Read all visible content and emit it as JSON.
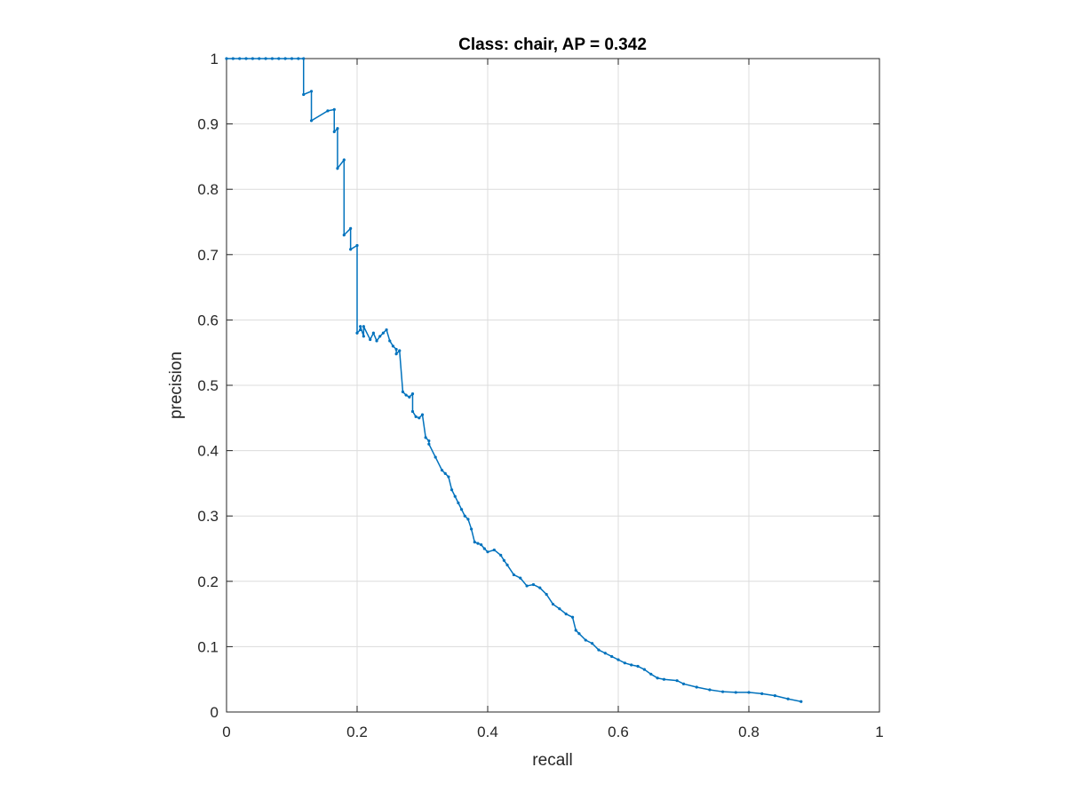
{
  "chart_data": {
    "type": "line",
    "title": "Class: chair, AP = 0.342",
    "xlabel": "recall",
    "ylabel": "precision",
    "xlim": [
      0,
      1
    ],
    "ylim": [
      0,
      1
    ],
    "xticks": [
      "0",
      "0.2",
      "0.4",
      "0.6",
      "0.8",
      "1"
    ],
    "yticks": [
      "0",
      "0.1",
      "0.2",
      "0.3",
      "0.4",
      "0.5",
      "0.6",
      "0.7",
      "0.8",
      "0.9",
      "1"
    ],
    "grid": true,
    "line_color": "#0072BD",
    "series": [
      {
        "x": [
          0,
          0.01,
          0.02,
          0.03,
          0.04,
          0.05,
          0.06,
          0.07,
          0.08,
          0.09,
          0.1,
          0.11,
          0.118,
          0.118,
          0.13,
          0.13,
          0.155,
          0.165,
          0.165,
          0.17,
          0.17,
          0.18,
          0.18,
          0.19,
          0.19,
          0.2,
          0.2,
          0.205,
          0.205,
          0.21,
          0.21,
          0.22,
          0.225,
          0.23,
          0.235,
          0.24,
          0.245,
          0.25,
          0.255,
          0.26,
          0.26,
          0.265,
          0.27,
          0.275,
          0.28,
          0.285,
          0.285,
          0.29,
          0.295,
          0.3,
          0.305,
          0.31,
          0.31,
          0.32,
          0.33,
          0.335,
          0.34,
          0.345,
          0.35,
          0.355,
          0.36,
          0.365,
          0.37,
          0.375,
          0.38,
          0.385,
          0.39,
          0.395,
          0.4,
          0.41,
          0.42,
          0.425,
          0.43,
          0.44,
          0.45,
          0.46,
          0.47,
          0.48,
          0.49,
          0.5,
          0.51,
          0.52,
          0.53,
          0.535,
          0.54,
          0.55,
          0.56,
          0.57,
          0.58,
          0.59,
          0.6,
          0.61,
          0.62,
          0.63,
          0.64,
          0.65,
          0.66,
          0.67,
          0.69,
          0.7,
          0.72,
          0.74,
          0.76,
          0.78,
          0.8,
          0.82,
          0.84,
          0.86,
          0.88
        ],
        "y": [
          1.0,
          1.0,
          1.0,
          1.0,
          1.0,
          1.0,
          1.0,
          1.0,
          1.0,
          1.0,
          1.0,
          1.0,
          1.0,
          0.945,
          0.95,
          0.905,
          0.92,
          0.922,
          0.888,
          0.893,
          0.832,
          0.845,
          0.73,
          0.74,
          0.708,
          0.714,
          0.58,
          0.585,
          0.59,
          0.575,
          0.59,
          0.57,
          0.58,
          0.568,
          0.575,
          0.58,
          0.585,
          0.568,
          0.56,
          0.555,
          0.548,
          0.553,
          0.49,
          0.485,
          0.482,
          0.487,
          0.46,
          0.452,
          0.45,
          0.455,
          0.42,
          0.415,
          0.41,
          0.39,
          0.37,
          0.365,
          0.36,
          0.34,
          0.33,
          0.32,
          0.31,
          0.3,
          0.295,
          0.28,
          0.26,
          0.258,
          0.256,
          0.25,
          0.245,
          0.248,
          0.24,
          0.232,
          0.225,
          0.21,
          0.205,
          0.193,
          0.195,
          0.19,
          0.18,
          0.165,
          0.158,
          0.15,
          0.145,
          0.125,
          0.12,
          0.11,
          0.105,
          0.095,
          0.09,
          0.085,
          0.08,
          0.075,
          0.072,
          0.07,
          0.065,
          0.058,
          0.052,
          0.05,
          0.048,
          0.043,
          0.038,
          0.034,
          0.031,
          0.03,
          0.03,
          0.028,
          0.025,
          0.02,
          0.016
        ]
      }
    ]
  }
}
